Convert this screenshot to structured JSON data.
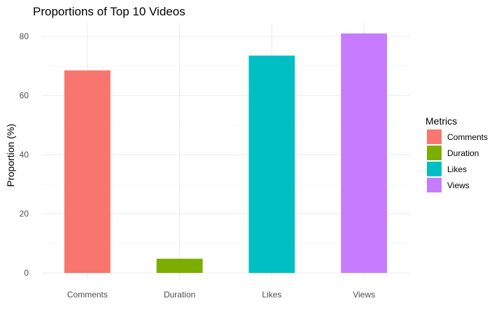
{
  "chart_data": {
    "type": "bar",
    "title": "Proportions of Top 10 Videos",
    "xlabel": "",
    "ylabel": "Proportion (%)",
    "categories": [
      "Comments",
      "Duration",
      "Likes",
      "Views"
    ],
    "values": [
      68.5,
      4.8,
      73.5,
      81.0
    ],
    "colors": [
      "#F8766D",
      "#7CAE00",
      "#00BFC4",
      "#C77CFF"
    ],
    "ylim": [
      0,
      85
    ],
    "yticks": [
      0,
      20,
      40,
      60,
      80
    ],
    "grid": true,
    "legend": {
      "title": "Metrics",
      "position": "right",
      "items": [
        "Comments",
        "Duration",
        "Likes",
        "Views"
      ]
    }
  }
}
